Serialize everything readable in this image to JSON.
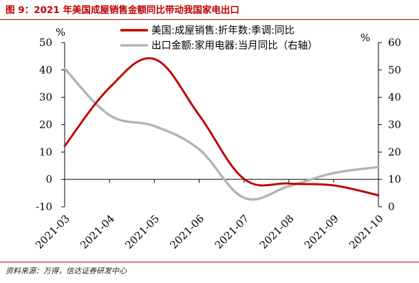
{
  "figure": {
    "title": "图 9：2021 年美国成屋销售金额同比带动我国家电出口",
    "source": "资料来源：万得，信达证券研发中心"
  },
  "chart_data": {
    "type": "line",
    "categories": [
      "2021-03",
      "2021-04",
      "2021-05",
      "2021-06",
      "2021-07",
      "2021-08",
      "2021-09",
      "2021-10"
    ],
    "y_left": {
      "unit": "%",
      "ylim": [
        -10,
        50
      ],
      "ticks": [
        -10,
        0,
        10,
        20,
        30,
        40,
        50
      ]
    },
    "y_right": {
      "unit": "%",
      "ylim": [
        0,
        60
      ],
      "ticks": [
        0,
        10,
        20,
        30,
        40,
        50,
        60
      ]
    },
    "grid": false,
    "legend_position": "top-center",
    "series": [
      {
        "name": "美国:成屋销售:折年数:季调:同比",
        "axis": "left",
        "color": "#c00000",
        "values": [
          12.2,
          33.5,
          44,
          23.5,
          0.2,
          -1.5,
          -2.2,
          -5.8
        ]
      },
      {
        "name": "出口金额:家用电器:当月同比（右轴）",
        "axis": "right",
        "color": "#b4b4b4",
        "values": [
          50.5,
          33.5,
          29.5,
          21,
          3.3,
          7.5,
          12.3,
          14.5
        ]
      }
    ]
  }
}
